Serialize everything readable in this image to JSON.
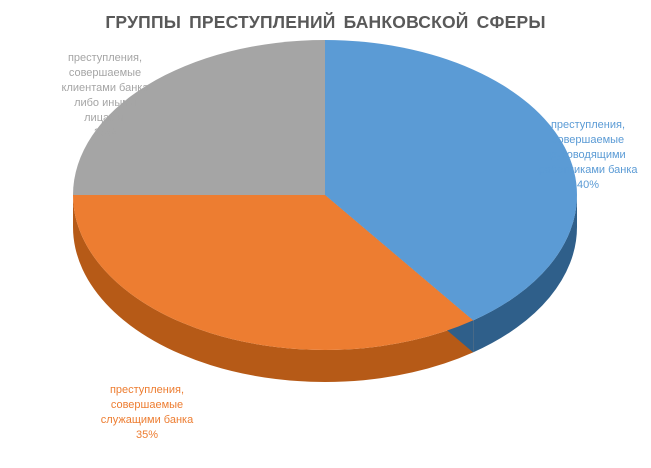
{
  "chart_data": {
    "type": "pie",
    "style": "3d",
    "title": "ГРУППЫ ПРЕСТУПЛЕНИЙ  БАНКОВСКОЙ СФЕРЫ",
    "slices": [
      {
        "label_lines": [
          "преступления,",
          "совершаемые",
          "руководящими",
          "работниками  банка"
        ],
        "value": 40,
        "value_label": "40%",
        "color": "#5b9bd5",
        "side_color": "#2f5f8a",
        "label_color": "#5b9bd5"
      },
      {
        "label_lines": [
          "преступления,",
          "совершаемые",
          "служащими  банка"
        ],
        "value": 35,
        "value_label": "35%",
        "color": "#ed7d31",
        "side_color": "#b65a17",
        "label_color": "#ed7d31"
      },
      {
        "label_lines": [
          "преступления,",
          "совершаемые",
          "клиентами банка",
          "либо иными",
          "лицами."
        ],
        "value": 25,
        "value_label": "25%",
        "color": "#a5a5a5",
        "side_color": "#7a7a7a",
        "label_color": "#a5a5a5"
      }
    ]
  }
}
